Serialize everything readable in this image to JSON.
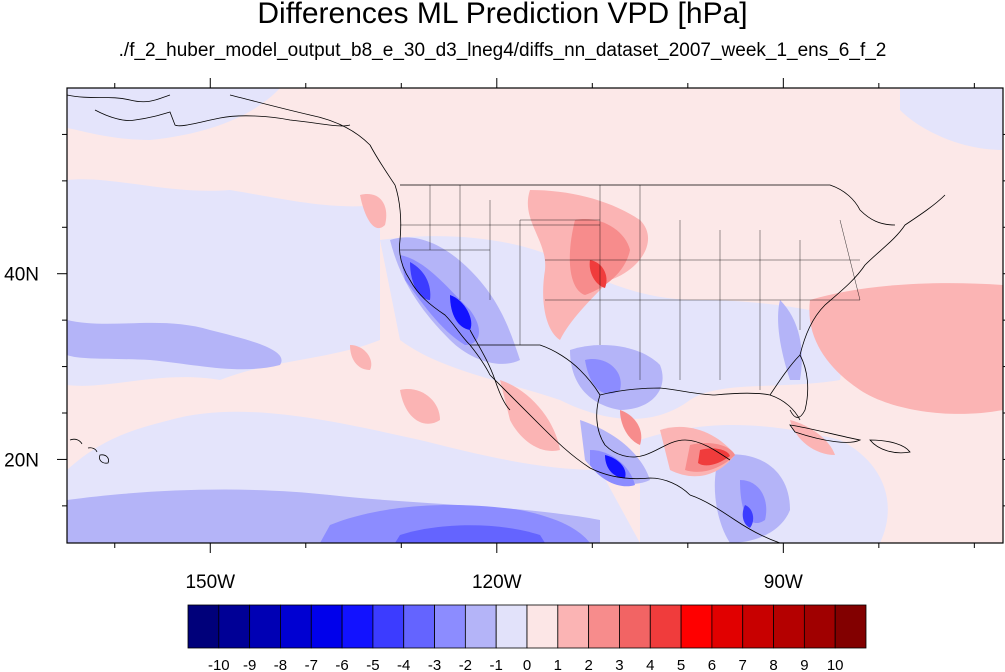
{
  "title": "Differences ML Prediction VPD [hPa]",
  "subtitle": "./f_2_huber_model_output_b8_e_30_d3_lneg4/diffs_nn_dataset_2007_week_1_ens_6_f_2",
  "map": {
    "lon_range": [
      -165,
      -67
    ],
    "lat_range": [
      11,
      60
    ],
    "lon_ticks": [
      {
        "value": -150,
        "label": "150W"
      },
      {
        "value": -120,
        "label": "120W"
      },
      {
        "value": -90,
        "label": "90W"
      }
    ],
    "lat_ticks": [
      {
        "value": 40,
        "label": "40N"
      },
      {
        "value": 20,
        "label": "20N"
      }
    ]
  },
  "colorbar": {
    "labels": [
      "-10",
      "-9",
      "-8",
      "-7",
      "-6",
      "-5",
      "-4",
      "-3",
      "-2",
      "-1",
      "0",
      "1",
      "2",
      "3",
      "4",
      "5",
      "6",
      "7",
      "8",
      "9",
      "10"
    ],
    "colors": [
      "#00007a",
      "#000096",
      "#0000b4",
      "#0000d2",
      "#0000eb",
      "#1212ff",
      "#3c3cff",
      "#6464ff",
      "#8c8cff",
      "#b4b4f8",
      "#e2e2fa",
      "#fce6e6",
      "#fbb4b4",
      "#f78c8c",
      "#f26464",
      "#f03c3c",
      "#ff0000",
      "#e10000",
      "#c80000",
      "#b40000",
      "#a00000",
      "#820000"
    ]
  },
  "colors": {
    "neutral_positive": "#fce8e8",
    "neutral_negative": "#e4e4fb",
    "coastline": "#000000"
  }
}
